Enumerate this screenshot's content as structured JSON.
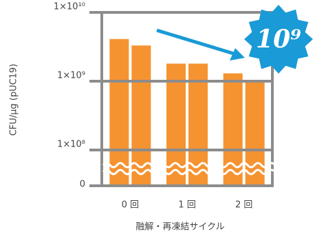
{
  "chart_data": {
    "type": "bar",
    "log_scale": true,
    "grid": true,
    "y_label": "CFU/µg (pUC19)",
    "x_label": "融解・再凍結サイクル",
    "annotation": "10⁹",
    "annotation_color": "#1a9ad6",
    "categories": [
      "0 回",
      "1 回",
      "2 回"
    ],
    "series": [
      {
        "color": "#f59331",
        "values": [
          4100000000,
          1800000000,
          1300000000
        ]
      },
      {
        "color": "#f59331",
        "values": [
          3300000000,
          1800000000,
          1000000000
        ]
      }
    ],
    "ylim": [
      0,
      10000000000
    ],
    "yticks": [
      {
        "value": 0,
        "label": "0"
      },
      {
        "value": 100000000,
        "label": "1×10⁸"
      },
      {
        "value": 1000000000,
        "label": "1×10⁹"
      },
      {
        "value": 10000000000,
        "label": "1×10¹⁰"
      }
    ]
  }
}
